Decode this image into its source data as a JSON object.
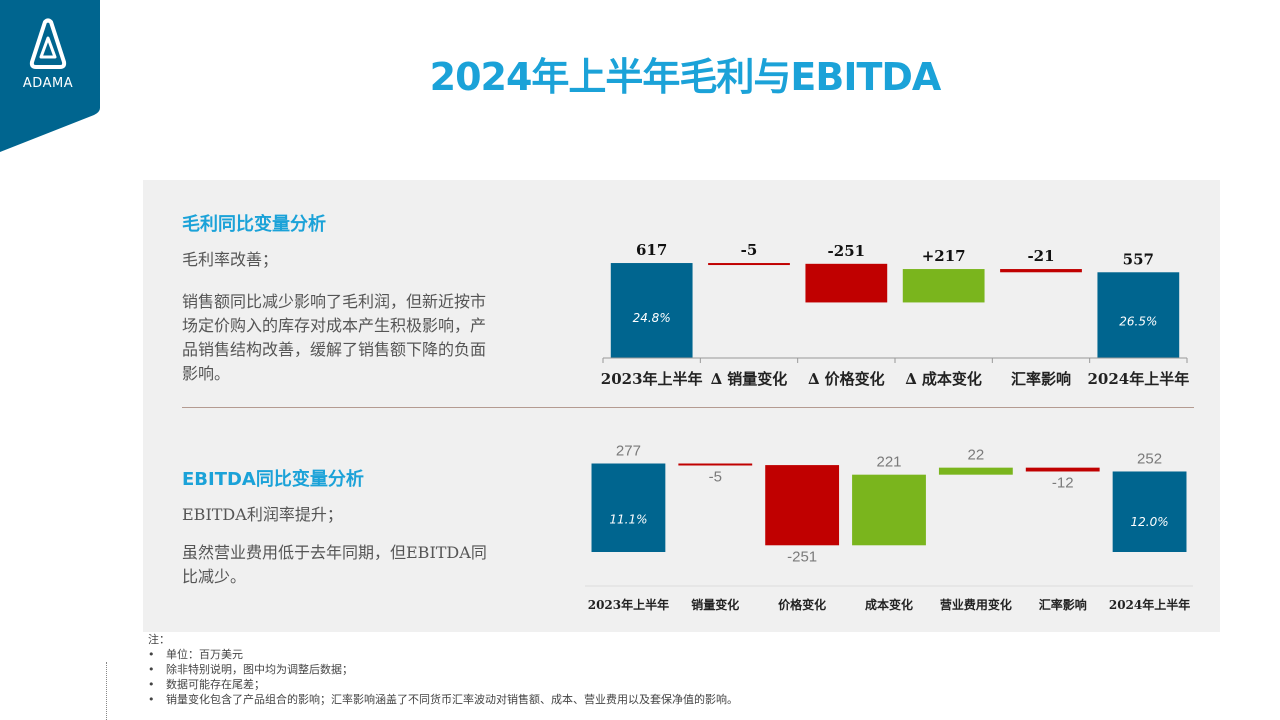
{
  "logo": {
    "text": "ADAMA"
  },
  "title": "2024年上半年毛利与EBITDA",
  "gross": {
    "heading": "毛利同比变量分析",
    "line1": "毛利率改善；",
    "para": [
      "销售额同比减少影响了毛利润，但新近按市",
      "场定价购入的库存对成本产生积极影响，产",
      "品销售结构改善，缓解了销售额下降的负面",
      "影响。"
    ]
  },
  "ebitda": {
    "heading": "EBITDA同比变量分析",
    "line1": "EBITDA利润率提升；",
    "para": [
      "虽然营业费用低于去年同期，但EBITDA同",
      "比减少。"
    ]
  },
  "notes": {
    "heading": "注：",
    "items": [
      "单位：百万美元",
      "除非特别说明，图中均为调整后数据；",
      "数据可能存在尾差；",
      "销量变化包含了产品组合的影响；汇率影响涵盖了不同货币汇率波动对销售额、成本、营业费用以及套保净值的影响。"
    ]
  },
  "colors": {
    "accent": "#1ba2d8",
    "total": "#00658f",
    "negative": "#c00000",
    "positive": "#7ab51d"
  },
  "chart_data": [
    {
      "type": "bar",
      "subtype": "waterfall",
      "categories": [
        "2023年上半年",
        "∆ 销量变化",
        "∆ 价格变化",
        "∆ 成本变化",
        "汇率影响",
        "2024年上半年"
      ],
      "values": [
        617,
        -5,
        -251,
        217,
        -21,
        557
      ],
      "kinds": [
        "total",
        "delta",
        "delta",
        "delta",
        "delta",
        "total"
      ],
      "labels": [
        "617",
        "-5",
        "-251",
        "+217",
        "-21",
        "557"
      ],
      "inner_labels": [
        "24.8%",
        "",
        "",
        "",
        "",
        "26.5%"
      ]
    },
    {
      "type": "bar",
      "subtype": "waterfall",
      "categories": [
        "2023年上半年",
        "销量变化",
        "价格变化",
        "成本变化",
        "营业费用变化",
        "汇率影响",
        "2024年上半年"
      ],
      "values": [
        277,
        -5,
        -251,
        221,
        22,
        -12,
        252
      ],
      "kinds": [
        "total",
        "delta",
        "delta",
        "delta",
        "delta",
        "delta",
        "total"
      ],
      "labels": [
        "277",
        "-5",
        "-251",
        "221",
        "22",
        "-12",
        "252"
      ],
      "inner_labels": [
        "11.1%",
        "",
        "",
        "",
        "",
        "",
        "12.0%"
      ]
    }
  ]
}
